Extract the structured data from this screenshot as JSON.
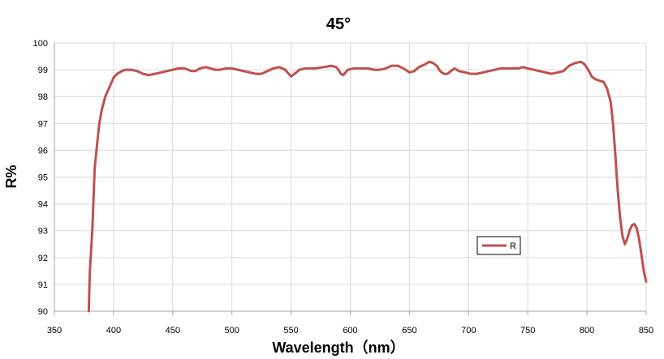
{
  "chart_data": {
    "type": "line",
    "title": "45°",
    "xlabel": "Wavelength（nm）",
    "ylabel": "R%",
    "xlim": [
      350,
      850
    ],
    "ylim": [
      90,
      100
    ],
    "x_ticks": [
      350,
      400,
      450,
      500,
      550,
      600,
      650,
      700,
      750,
      800,
      850
    ],
    "y_ticks": [
      90,
      91,
      92,
      93,
      94,
      95,
      96,
      97,
      98,
      99,
      100
    ],
    "grid": true,
    "legend_position": "bottom-right",
    "series": [
      {
        "name": "R",
        "color": "#c0504d",
        "points": [
          [
            379,
            90.0
          ],
          [
            380,
            91.5
          ],
          [
            382,
            93.0
          ],
          [
            384,
            95.3
          ],
          [
            386,
            96.2
          ],
          [
            388,
            97.0
          ],
          [
            390,
            97.5
          ],
          [
            393,
            98.0
          ],
          [
            397,
            98.4
          ],
          [
            400,
            98.7
          ],
          [
            403,
            98.85
          ],
          [
            407,
            98.95
          ],
          [
            410,
            99.0
          ],
          [
            415,
            99.0
          ],
          [
            420,
            98.95
          ],
          [
            425,
            98.85
          ],
          [
            430,
            98.8
          ],
          [
            435,
            98.85
          ],
          [
            440,
            98.9
          ],
          [
            445,
            98.95
          ],
          [
            450,
            99.0
          ],
          [
            455,
            99.05
          ],
          [
            460,
            99.05
          ],
          [
            463,
            99.0
          ],
          [
            466,
            98.95
          ],
          [
            469,
            98.95
          ],
          [
            473,
            99.05
          ],
          [
            478,
            99.1
          ],
          [
            482,
            99.05
          ],
          [
            486,
            99.0
          ],
          [
            490,
            99.0
          ],
          [
            495,
            99.05
          ],
          [
            500,
            99.05
          ],
          [
            505,
            99.0
          ],
          [
            510,
            98.95
          ],
          [
            515,
            98.9
          ],
          [
            520,
            98.85
          ],
          [
            525,
            98.85
          ],
          [
            530,
            98.95
          ],
          [
            535,
            99.05
          ],
          [
            540,
            99.1
          ],
          [
            545,
            99.0
          ],
          [
            548,
            98.85
          ],
          [
            550,
            98.75
          ],
          [
            553,
            98.85
          ],
          [
            557,
            99.0
          ],
          [
            562,
            99.05
          ],
          [
            570,
            99.05
          ],
          [
            578,
            99.1
          ],
          [
            584,
            99.15
          ],
          [
            588,
            99.1
          ],
          [
            590,
            99.0
          ],
          [
            592,
            98.85
          ],
          [
            594,
            98.8
          ],
          [
            596,
            98.9
          ],
          [
            598,
            99.0
          ],
          [
            603,
            99.05
          ],
          [
            610,
            99.05
          ],
          [
            615,
            99.05
          ],
          [
            620,
            99.0
          ],
          [
            625,
            99.0
          ],
          [
            630,
            99.05
          ],
          [
            635,
            99.15
          ],
          [
            640,
            99.15
          ],
          [
            645,
            99.05
          ],
          [
            650,
            98.9
          ],
          [
            654,
            98.95
          ],
          [
            658,
            99.1
          ],
          [
            663,
            99.2
          ],
          [
            667,
            99.3
          ],
          [
            670,
            99.25
          ],
          [
            673,
            99.15
          ],
          [
            676,
            98.95
          ],
          [
            679,
            98.85
          ],
          [
            682,
            98.85
          ],
          [
            685,
            98.95
          ],
          [
            688,
            99.05
          ],
          [
            692,
            98.95
          ],
          [
            697,
            98.9
          ],
          [
            702,
            98.85
          ],
          [
            707,
            98.85
          ],
          [
            712,
            98.9
          ],
          [
            717,
            98.95
          ],
          [
            722,
            99.0
          ],
          [
            727,
            99.05
          ],
          [
            732,
            99.05
          ],
          [
            737,
            99.05
          ],
          [
            742,
            99.05
          ],
          [
            746,
            99.1
          ],
          [
            750,
            99.05
          ],
          [
            755,
            99.0
          ],
          [
            760,
            98.95
          ],
          [
            765,
            98.9
          ],
          [
            770,
            98.85
          ],
          [
            775,
            98.9
          ],
          [
            780,
            98.95
          ],
          [
            785,
            99.15
          ],
          [
            790,
            99.25
          ],
          [
            795,
            99.3
          ],
          [
            798,
            99.2
          ],
          [
            801,
            99.0
          ],
          [
            804,
            98.75
          ],
          [
            807,
            98.65
          ],
          [
            810,
            98.6
          ],
          [
            814,
            98.55
          ],
          [
            817,
            98.3
          ],
          [
            820,
            97.8
          ],
          [
            822,
            97.0
          ],
          [
            824,
            95.8
          ],
          [
            826,
            94.5
          ],
          [
            828,
            93.5
          ],
          [
            830,
            92.8
          ],
          [
            832,
            92.5
          ],
          [
            834,
            92.7
          ],
          [
            836,
            93.0
          ],
          [
            838,
            93.2
          ],
          [
            840,
            93.25
          ],
          [
            842,
            93.1
          ],
          [
            844,
            92.7
          ],
          [
            846,
            92.1
          ],
          [
            848,
            91.5
          ],
          [
            850,
            91.1
          ]
        ]
      }
    ]
  }
}
